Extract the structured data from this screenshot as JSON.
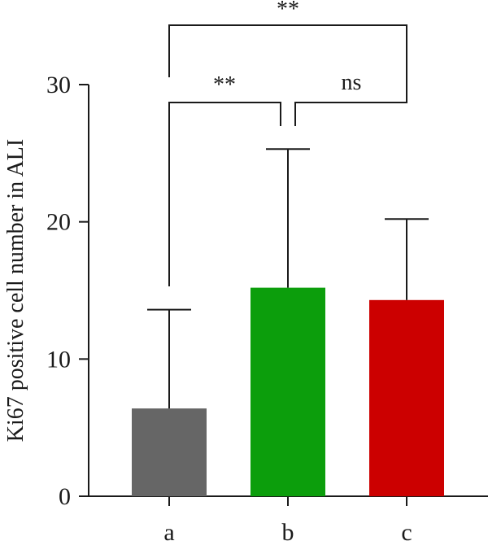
{
  "chart_data": {
    "type": "bar",
    "title": "",
    "xlabel": "",
    "ylabel": "Ki67 positive cell number in ALI",
    "ylim": [
      0,
      30
    ],
    "yticks": [
      0,
      10,
      20,
      30
    ],
    "categories": [
      "a",
      "b",
      "c"
    ],
    "values": [
      6.4,
      15.2,
      14.3
    ],
    "errors": [
      7.2,
      10.1,
      5.9
    ],
    "colors": [
      "#666666",
      "#0c9e0c",
      "#cc0000"
    ],
    "significance": [
      {
        "from": "a",
        "to": "b",
        "label": "**"
      },
      {
        "from": "b",
        "to": "c",
        "label": "ns"
      },
      {
        "from": "a",
        "to": "c",
        "label": "**"
      }
    ],
    "grid": false,
    "legend": "none"
  }
}
